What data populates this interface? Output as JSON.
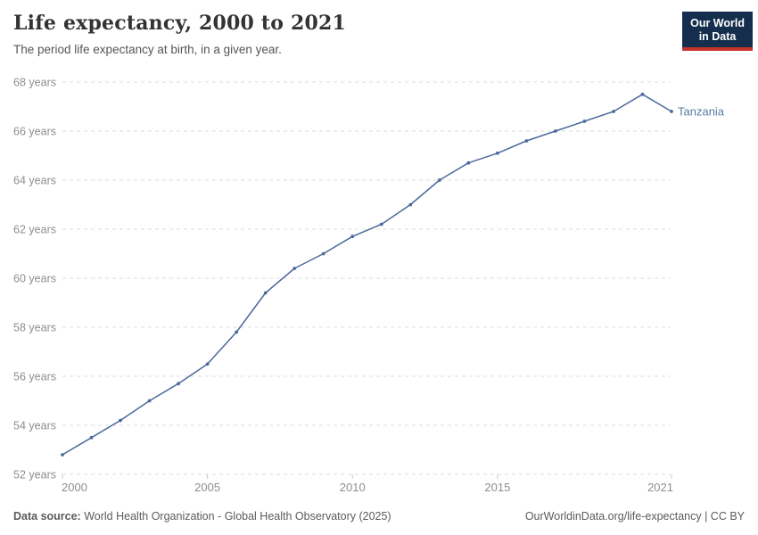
{
  "header": {
    "title": "Life expectancy, 2000 to 2021",
    "subtitle": "The period life expectancy at birth, in a given year.",
    "logo": {
      "line1": "Our World",
      "line2": "in Data"
    }
  },
  "chart_data": {
    "type": "line",
    "title": "Life expectancy, 2000 to 2021",
    "x": [
      2000,
      2001,
      2002,
      2003,
      2004,
      2005,
      2006,
      2007,
      2008,
      2009,
      2010,
      2011,
      2012,
      2013,
      2014,
      2015,
      2016,
      2017,
      2018,
      2019,
      2020,
      2021
    ],
    "series": [
      {
        "name": "Tanzania",
        "color": "#4C6A9C",
        "values": [
          52.8,
          53.5,
          54.2,
          55.0,
          55.7,
          56.5,
          57.8,
          59.4,
          60.4,
          61.0,
          61.7,
          62.2,
          63.0,
          64.0,
          64.7,
          65.1,
          65.6,
          66.0,
          66.4,
          66.8,
          67.5,
          66.8
        ]
      }
    ],
    "xlim": [
      2000,
      2021
    ],
    "ylim": [
      52,
      68
    ],
    "yticks": [
      {
        "value": 52,
        "label": "52 years"
      },
      {
        "value": 54,
        "label": "54 years"
      },
      {
        "value": 56,
        "label": "56 years"
      },
      {
        "value": 58,
        "label": "58 years"
      },
      {
        "value": 60,
        "label": "60 years"
      },
      {
        "value": 62,
        "label": "62 years"
      },
      {
        "value": 64,
        "label": "64 years"
      },
      {
        "value": 66,
        "label": "66 years"
      },
      {
        "value": 68,
        "label": "68 years"
      }
    ],
    "xticks": [
      {
        "value": 2000,
        "label": "2000"
      },
      {
        "value": 2005,
        "label": "2005"
      },
      {
        "value": 2010,
        "label": "2010"
      },
      {
        "value": 2015,
        "label": "2015"
      },
      {
        "value": 2021,
        "label": "2021"
      }
    ],
    "grid": "horizontal-dashed",
    "legend": "line-end-label"
  },
  "colors": {
    "line": "#4C6A9C",
    "entity_label": "#5B7AA6",
    "grid": "#DEDEDE",
    "tick_mark": "#C8C8C8",
    "axis_text": "#8E8E8E",
    "title_text": "#333333",
    "subtitle_text": "#555555",
    "footer_text": "#5B5B5B",
    "logo_bg": "#152E4E",
    "logo_accent": "#C5332B"
  },
  "footer": {
    "datasource_label": "Data source:",
    "datasource_text": "World Health Organization - Global Health Observatory (2025)",
    "link_text": "OurWorldinData.org/life-expectancy | CC BY"
  }
}
